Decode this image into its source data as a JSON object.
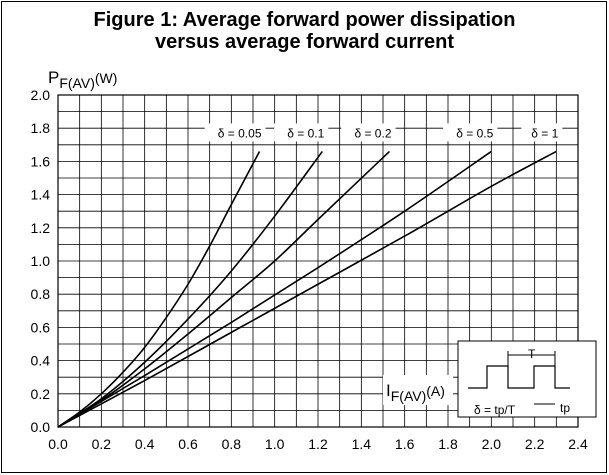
{
  "title_line1": "Figure 1: Average forward power dissipation",
  "title_line2": "versus average forward current",
  "chart_data": {
    "type": "line",
    "ylabel_main": "P",
    "ylabel_sub": "F(AV)",
    "ylabel_unit": "(W)",
    "xlabel_main": "I",
    "xlabel_sub": "F(AV)",
    "xlabel_unit": "(A)",
    "xlim": [
      0,
      2.4
    ],
    "ylim": [
      0,
      2.0
    ],
    "x_ticks": [
      "0.0",
      "0.2",
      "0.4",
      "0.6",
      "0.8",
      "1.0",
      "1.2",
      "1.4",
      "1.6",
      "1.8",
      "2.0",
      "2.2",
      "2.4"
    ],
    "y_ticks": [
      "0.0",
      "0.2",
      "0.4",
      "0.6",
      "0.8",
      "1.0",
      "1.2",
      "1.4",
      "1.6",
      "1.8",
      "2.0"
    ],
    "grid": true,
    "series": [
      {
        "name": "δ = 0.05",
        "x": [
          0,
          0.1,
          0.2,
          0.3,
          0.4,
          0.5,
          0.6,
          0.7,
          0.8,
          0.93
        ],
        "y": [
          0,
          0.09,
          0.2,
          0.33,
          0.48,
          0.66,
          0.86,
          1.09,
          1.34,
          1.66
        ]
      },
      {
        "name": "δ = 0.1",
        "x": [
          0,
          0.2,
          0.4,
          0.6,
          0.8,
          1.0,
          1.22
        ],
        "y": [
          0,
          0.17,
          0.39,
          0.65,
          0.94,
          1.27,
          1.66
        ]
      },
      {
        "name": "δ = 0.2",
        "x": [
          0,
          0.2,
          0.4,
          0.6,
          0.8,
          1.0,
          1.2,
          1.53
        ],
        "y": [
          0,
          0.16,
          0.35,
          0.56,
          0.78,
          1.0,
          1.25,
          1.66
        ]
      },
      {
        "name": "δ = 0.5",
        "x": [
          0,
          0.4,
          0.8,
          1.2,
          1.6,
          2.0
        ],
        "y": [
          0,
          0.31,
          0.63,
          0.96,
          1.3,
          1.66
        ]
      },
      {
        "name": "δ = 1",
        "x": [
          0,
          0.4,
          0.8,
          1.2,
          1.6,
          2.0,
          2.3
        ],
        "y": [
          0,
          0.28,
          0.57,
          0.86,
          1.15,
          1.45,
          1.66
        ]
      }
    ],
    "inset": {
      "period_label": "T",
      "formula_label": "δ = tp/T",
      "pulse_label": "tp"
    }
  }
}
